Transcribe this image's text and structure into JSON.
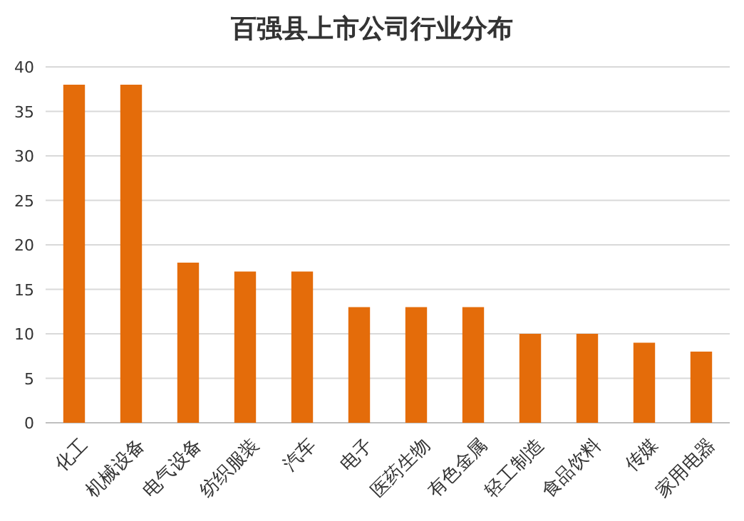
{
  "chart_data": {
    "type": "bar",
    "title": "百强县上市公司行业分布",
    "categories": [
      "化工",
      "机械设备",
      "电气设备",
      "纺织服装",
      "汽车",
      "电子",
      "医药生物",
      "有色金属",
      "轻工制造",
      "食品饮料",
      "传媒",
      "家用电器"
    ],
    "values": [
      38,
      38,
      18,
      17,
      17,
      13,
      13,
      13,
      10,
      10,
      9,
      8
    ],
    "color": "#e46c0a",
    "ylim": [
      0,
      40
    ],
    "yticks": [
      0,
      5,
      10,
      15,
      20,
      25,
      30,
      35,
      40
    ],
    "grid": "y"
  }
}
